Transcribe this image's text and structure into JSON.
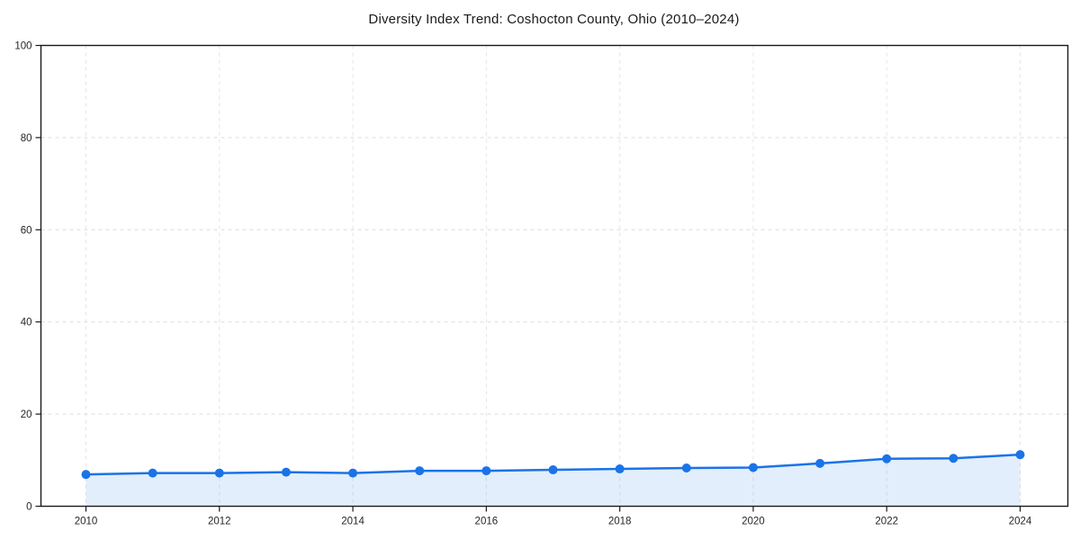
{
  "chart_data": {
    "type": "line",
    "title": "Diversity Index Trend: Coshocton County, Ohio (2010–2024)",
    "series_name": "Diversity Index",
    "x": [
      2010,
      2011,
      2012,
      2013,
      2014,
      2015,
      2016,
      2017,
      2018,
      2019,
      2020,
      2021,
      2022,
      2023,
      2024
    ],
    "values": [
      6.9,
      7.2,
      7.2,
      7.4,
      7.2,
      7.7,
      7.7,
      7.9,
      8.1,
      8.3,
      8.4,
      9.3,
      10.3,
      10.4,
      11.2
    ],
    "xlabel": "",
    "ylabel": "",
    "ylim": [
      0,
      100
    ],
    "yticks": [
      0,
      20,
      40,
      60,
      80,
      100
    ],
    "xticks": [
      2010,
      2012,
      2014,
      2016,
      2018,
      2020,
      2022,
      2024
    ],
    "grid": true,
    "legend": "none",
    "marker": "circle",
    "colors": {
      "line": "#1a73e8",
      "marker": "#1a73e8",
      "area_fill": "rgba(26,115,232,0.12)",
      "grid_horizontal": "#dcdcdc",
      "grid_vertical": "#e5e5e5",
      "axis": "#1a1a1a",
      "tick_label": "#262626",
      "background": "#ffffff"
    }
  }
}
